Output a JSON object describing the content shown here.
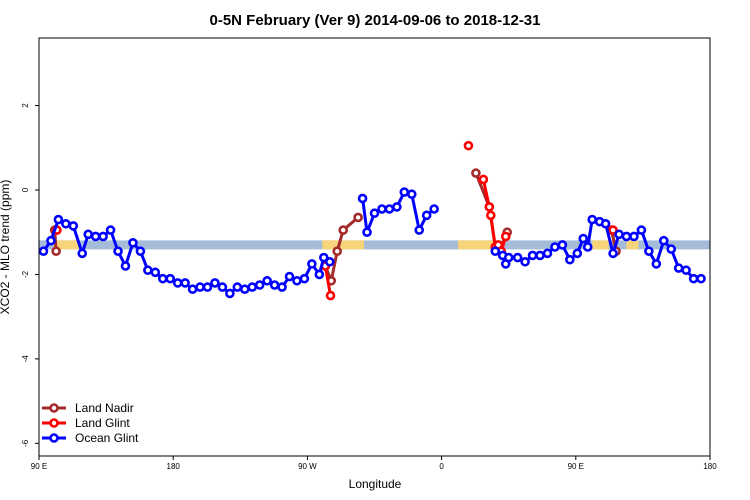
{
  "chart_data": {
    "type": "line",
    "title": "0-5N February (Ver 9)   2014-09-06 to 2018-12-31",
    "xlabel": "Longitude",
    "ylabel": "XCO2 - MLO trend (ppm)",
    "xlim": [
      90,
      540
    ],
    "ylim": [
      -6.3,
      3.6
    ],
    "x_ticks": [
      {
        "value": 90,
        "label": "90 E"
      },
      {
        "value": 180,
        "label": "180"
      },
      {
        "value": 270,
        "label": "90 W"
      },
      {
        "value": 360,
        "label": "0"
      },
      {
        "value": 450,
        "label": "90 E"
      },
      {
        "value": 540,
        "label": "180"
      }
    ],
    "y_ticks": [
      {
        "value": 2,
        "label": "2"
      },
      {
        "value": 0,
        "label": "0"
      },
      {
        "value": -2,
        "label": "-2"
      },
      {
        "value": -4,
        "label": "-4"
      },
      {
        "value": -6,
        "label": "-6"
      }
    ],
    "band": {
      "y": -1.3,
      "color": "#a5bcd9",
      "land_color": "#f7d47a",
      "land_segments": [
        [
          100,
          117
        ],
        [
          280,
          308
        ],
        [
          371,
          400
        ],
        [
          461,
          472
        ],
        [
          484,
          492
        ]
      ]
    },
    "legend_position": "bottom-left",
    "series": [
      {
        "name": "Land Nadir",
        "color": "#a52a2a",
        "segments": [
          [
            [
              100.5,
              -0.95
            ],
            [
              101.5,
              -1.45
            ]
          ],
          [
            [
              282,
              -1.8
            ],
            [
              286,
              -2.15
            ],
            [
              290,
              -1.45
            ],
            [
              294,
              -0.95
            ],
            [
              304,
              -0.65
            ]
          ],
          [
            [
              383,
              0.4
            ],
            [
              392,
              -0.4
            ],
            [
              396,
              -1.35
            ],
            [
              399,
              -1.45
            ],
            [
              404,
              -1.0
            ]
          ],
          [
            [
              474,
              -0.95
            ],
            [
              477,
              -1.45
            ]
          ]
        ]
      },
      {
        "name": "Land Glint",
        "color": "#ff0000",
        "segments": [
          [
            [
              102,
              -0.95
            ]
          ],
          [
            [
              282,
              -1.8
            ],
            [
              285.5,
              -2.5
            ]
          ],
          [
            [
              378,
              1.05
            ]
          ],
          [
            [
              388,
              0.25
            ],
            [
              392,
              -0.4
            ],
            [
              393,
              -0.6
            ],
            [
              396,
              -1.35
            ],
            [
              398,
              -1.3
            ],
            [
              400,
              -1.45
            ],
            [
              403,
              -1.1
            ]
          ],
          [
            [
              475,
              -0.95
            ]
          ]
        ]
      },
      {
        "name": "Ocean Glint",
        "color": "#0000ff",
        "segments": [
          [
            [
              93,
              -1.45
            ],
            [
              98,
              -1.2
            ],
            [
              103,
              -0.7
            ],
            [
              108,
              -0.8
            ],
            [
              113,
              -0.85
            ],
            [
              119,
              -1.5
            ],
            [
              123,
              -1.05
            ],
            [
              128,
              -1.1
            ],
            [
              133,
              -1.1
            ],
            [
              138,
              -0.95
            ],
            [
              143,
              -1.45
            ],
            [
              148,
              -1.8
            ],
            [
              153,
              -1.25
            ],
            [
              158,
              -1.45
            ],
            [
              163,
              -1.9
            ],
            [
              168,
              -1.95
            ],
            [
              173,
              -2.1
            ],
            [
              178,
              -2.1
            ],
            [
              183,
              -2.2
            ],
            [
              188,
              -2.2
            ],
            [
              193,
              -2.35
            ],
            [
              198,
              -2.3
            ],
            [
              203,
              -2.3
            ],
            [
              208,
              -2.2
            ],
            [
              213,
              -2.3
            ],
            [
              218,
              -2.45
            ],
            [
              223,
              -2.3
            ],
            [
              228,
              -2.35
            ],
            [
              233,
              -2.3
            ],
            [
              238,
              -2.25
            ],
            [
              243,
              -2.15
            ],
            [
              248,
              -2.25
            ],
            [
              253,
              -2.3
            ],
            [
              258,
              -2.05
            ],
            [
              263,
              -2.15
            ],
            [
              268,
              -2.1
            ],
            [
              273,
              -1.75
            ],
            [
              278,
              -2.0
            ],
            [
              281,
              -1.6
            ],
            [
              285,
              -1.7
            ]
          ],
          [
            [
              307,
              -0.2
            ],
            [
              310,
              -1.0
            ],
            [
              315,
              -0.55
            ],
            [
              320,
              -0.45
            ],
            [
              325,
              -0.45
            ],
            [
              330,
              -0.4
            ],
            [
              335,
              -0.05
            ],
            [
              340,
              -0.1
            ],
            [
              345,
              -0.95
            ],
            [
              350,
              -0.6
            ],
            [
              355,
              -0.45
            ]
          ],
          [
            [
              396,
              -1.45
            ],
            [
              401,
              -1.55
            ],
            [
              403,
              -1.75
            ],
            [
              405,
              -1.6
            ],
            [
              411,
              -1.6
            ],
            [
              416,
              -1.7
            ],
            [
              421,
              -1.55
            ],
            [
              426,
              -1.55
            ],
            [
              431,
              -1.5
            ],
            [
              436,
              -1.35
            ],
            [
              441,
              -1.3
            ],
            [
              446,
              -1.65
            ],
            [
              451,
              -1.5
            ],
            [
              455,
              -1.15
            ],
            [
              458,
              -1.35
            ],
            [
              461,
              -0.7
            ],
            [
              466,
              -0.75
            ],
            [
              470,
              -0.8
            ],
            [
              475,
              -1.5
            ],
            [
              479,
              -1.05
            ],
            [
              484,
              -1.1
            ],
            [
              489,
              -1.1
            ],
            [
              494,
              -0.95
            ],
            [
              499,
              -1.45
            ],
            [
              504,
              -1.75
            ],
            [
              509,
              -1.2
            ],
            [
              514,
              -1.4
            ],
            [
              519,
              -1.85
            ],
            [
              524,
              -1.9
            ],
            [
              529,
              -2.1
            ],
            [
              534,
              -2.1
            ]
          ]
        ]
      }
    ]
  }
}
